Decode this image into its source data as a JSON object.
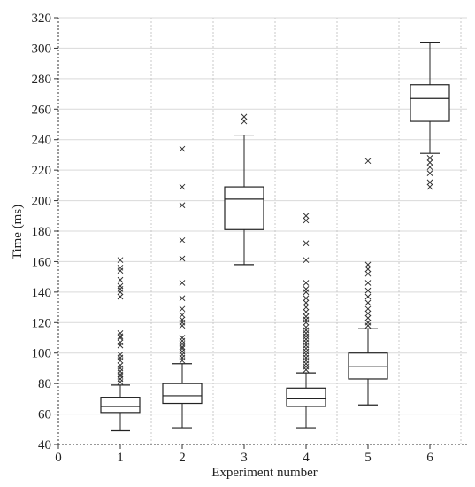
{
  "chart_data": {
    "type": "box",
    "xlabel": "Experiment number",
    "ylabel": "Time (ms)",
    "xlim": [
      0,
      6.6
    ],
    "ylim": [
      40,
      320
    ],
    "x_ticks": [
      0,
      1,
      2,
      3,
      4,
      5,
      6
    ],
    "y_ticks": [
      40,
      60,
      80,
      100,
      120,
      140,
      160,
      180,
      200,
      220,
      240,
      260,
      280,
      300,
      320
    ],
    "grid": true,
    "boxes": [
      {
        "x": 1,
        "whisker_low": 49,
        "q1": 61,
        "median": 65,
        "q3": 71,
        "whisker_high": 79,
        "outliers": [
          81,
          83,
          85,
          86,
          88,
          90,
          92,
          95,
          97,
          99,
          105,
          107,
          110,
          111,
          113,
          137,
          140,
          142,
          144,
          148,
          154,
          156,
          161
        ]
      },
      {
        "x": 2,
        "whisker_low": 51,
        "q1": 67,
        "median": 72,
        "q3": 80,
        "whisker_high": 93,
        "outliers": [
          95,
          97,
          99,
          101,
          103,
          104,
          106,
          108,
          110,
          118,
          120,
          122,
          125,
          129,
          136,
          146,
          162,
          174,
          197,
          209,
          234
        ]
      },
      {
        "x": 3,
        "whisker_low": 158,
        "q1": 181,
        "median": 201,
        "q3": 209,
        "whisker_high": 243,
        "outliers": [
          252,
          255
        ]
      },
      {
        "x": 4,
        "whisker_low": 51,
        "q1": 65,
        "median": 70,
        "q3": 77,
        "whisker_high": 87,
        "outliers": [
          89,
          91,
          93,
          95,
          97,
          99,
          101,
          103,
          105,
          107,
          109,
          111,
          113,
          115,
          117,
          120,
          122,
          124,
          127,
          130,
          133,
          136,
          140,
          142,
          146,
          161,
          172,
          187,
          190
        ]
      },
      {
        "x": 5,
        "whisker_low": 66,
        "q1": 83,
        "median": 91,
        "q3": 100,
        "whisker_high": 116,
        "outliers": [
          118,
          120,
          123,
          126,
          129,
          133,
          137,
          141,
          146,
          152,
          155,
          158,
          226
        ]
      },
      {
        "x": 6,
        "whisker_low": 231,
        "q1": 252,
        "median": 267,
        "q3": 276,
        "whisker_high": 304,
        "outliers": [
          228,
          225,
          222,
          218,
          212,
          209
        ]
      }
    ]
  }
}
